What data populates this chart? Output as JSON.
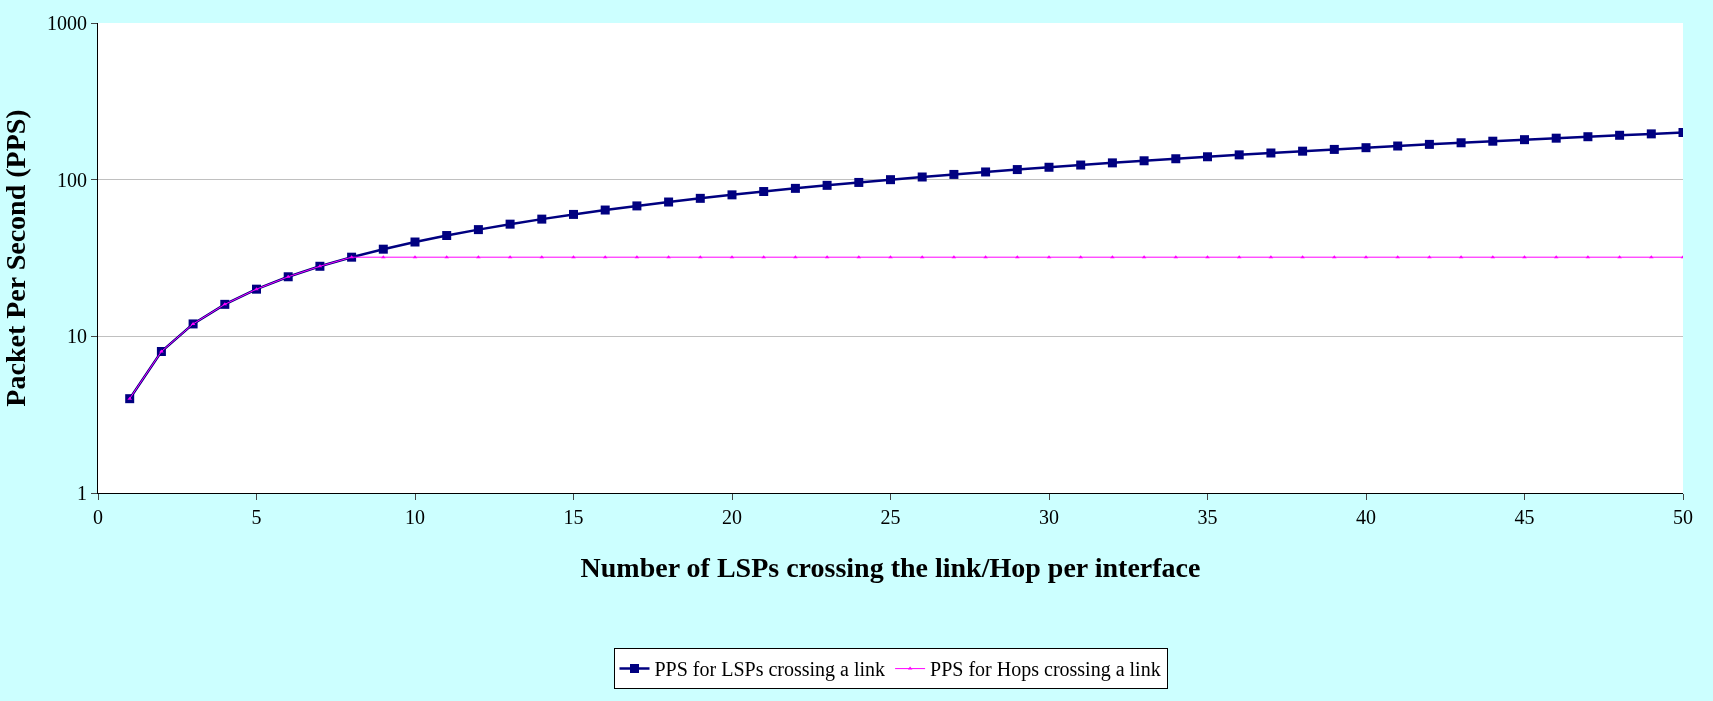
{
  "chart_data": {
    "type": "line",
    "xlabel": "Number of LSPs crossing the link/Hop per interface",
    "ylabel": "Packet Per Second (PPS)",
    "x": [
      1,
      2,
      3,
      4,
      5,
      6,
      7,
      8,
      9,
      10,
      11,
      12,
      13,
      14,
      15,
      16,
      17,
      18,
      19,
      20,
      21,
      22,
      23,
      24,
      25,
      26,
      27,
      28,
      29,
      30,
      31,
      32,
      33,
      34,
      35,
      36,
      37,
      38,
      39,
      40,
      41,
      42,
      43,
      44,
      45,
      46,
      47,
      48,
      49,
      50
    ],
    "series": [
      {
        "name": "PPS for LSPs crossing a link",
        "color": "#000080",
        "marker": "square",
        "values": [
          4,
          8,
          12,
          16,
          20,
          24,
          28,
          32,
          36,
          40,
          44,
          48,
          52,
          56,
          60,
          64,
          68,
          72,
          76,
          80,
          84,
          88,
          92,
          96,
          100,
          104,
          108,
          112,
          116,
          120,
          124,
          128,
          132,
          136,
          140,
          144,
          148,
          152,
          156,
          160,
          164,
          168,
          172,
          176,
          180,
          184,
          188,
          192,
          196,
          200
        ]
      },
      {
        "name": "PPS for Hops crossing a link",
        "color": "#ff00ff",
        "marker": "triangle",
        "values": [
          4,
          8,
          12,
          16,
          20,
          24,
          28,
          32,
          32,
          32,
          32,
          32,
          32,
          32,
          32,
          32,
          32,
          32,
          32,
          32,
          32,
          32,
          32,
          32,
          32,
          32,
          32,
          32,
          32,
          32,
          32,
          32,
          32,
          32,
          32,
          32,
          32,
          32,
          32,
          32,
          32,
          32,
          32,
          32,
          32,
          32,
          32,
          32,
          32,
          32
        ]
      }
    ],
    "log": "y",
    "xlim": [
      0,
      50
    ],
    "xticks": [
      0,
      5,
      10,
      15,
      20,
      25,
      30,
      35,
      40,
      45,
      50
    ],
    "ylim": [
      1,
      1000
    ],
    "yticks": [
      1,
      10,
      100,
      1000
    ],
    "grid": "y",
    "legend": "bottom",
    "line_style": "solid"
  }
}
